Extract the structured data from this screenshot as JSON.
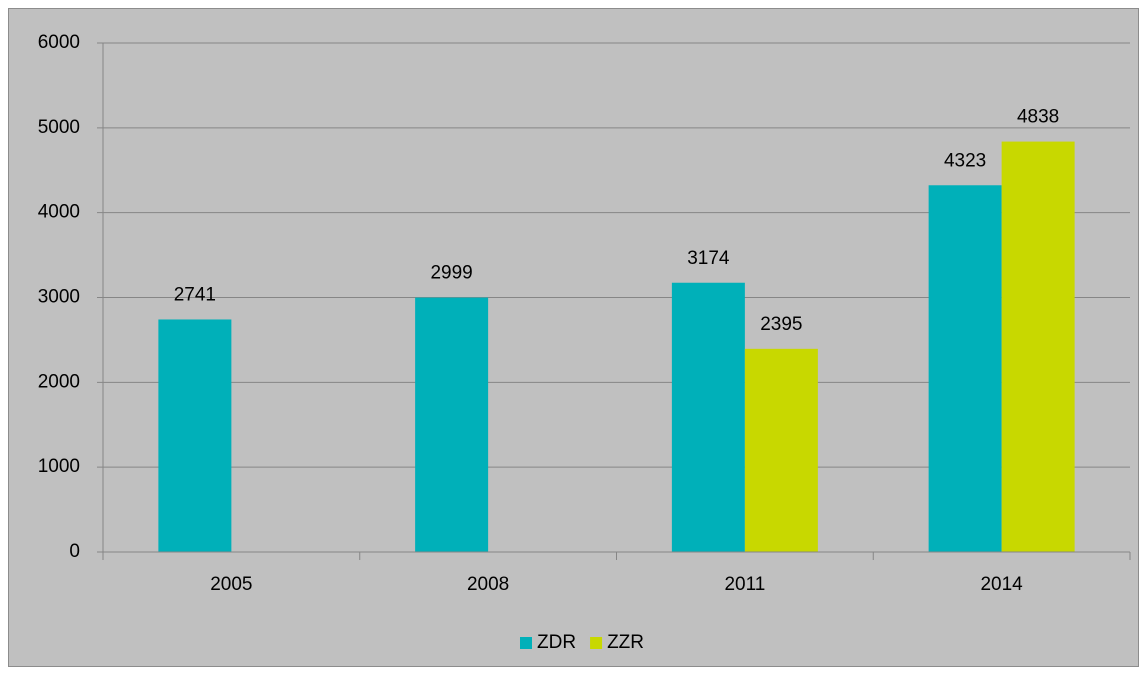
{
  "chart_data": {
    "type": "bar",
    "categories": [
      "2005",
      "2008",
      "2011",
      "2014"
    ],
    "series": [
      {
        "name": "ZDR",
        "color": "#00b0b9",
        "values": [
          2741,
          2999,
          3174,
          4323
        ]
      },
      {
        "name": "ZZR",
        "color": "#c8d800",
        "values": [
          null,
          null,
          2395,
          4838
        ]
      }
    ],
    "ylim": [
      0,
      6000
    ],
    "yticks": [
      0,
      1000,
      2000,
      3000,
      4000,
      5000,
      6000
    ],
    "grid": true,
    "legend": "bottom"
  }
}
